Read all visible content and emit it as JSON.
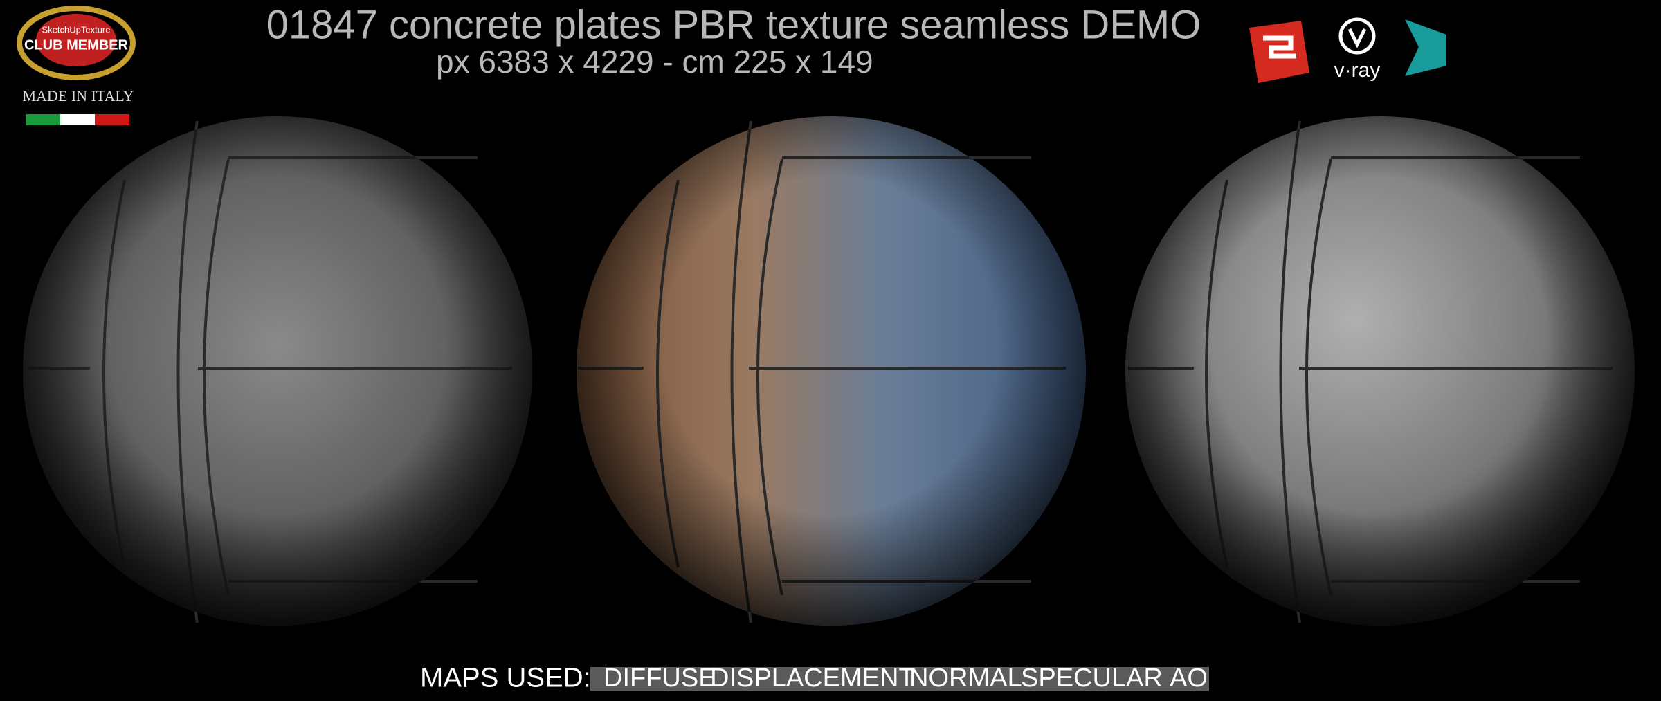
{
  "header": {
    "title": "01847 concrete plates PBR texture seamless DEMO",
    "subtitle": "px 6383 x 4229 - cm 225 x 149"
  },
  "logo": {
    "brand": "SketchUpTexture",
    "badge": "CLUB MEMBER",
    "origin": "MADE IN ITALY"
  },
  "software": {
    "vray": "v·ray"
  },
  "footer": {
    "label": "MAPS USED:",
    "maps": [
      "DIFFUSE",
      "DISPLACEMENT",
      "NORMAL",
      "SPECULAR",
      "AO"
    ]
  }
}
